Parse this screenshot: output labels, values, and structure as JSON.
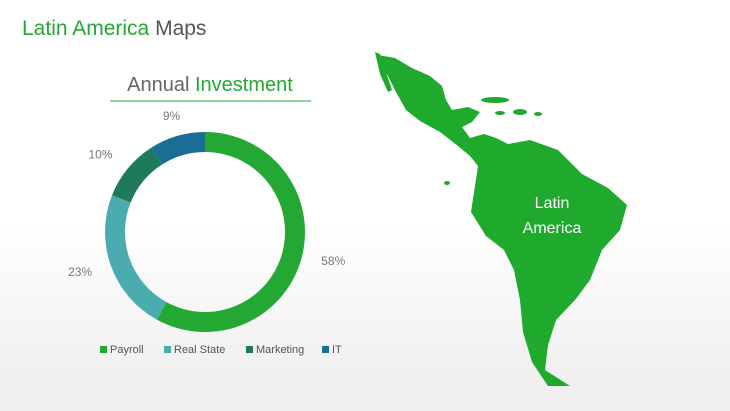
{
  "slide": {
    "title": [
      "Latin America",
      "Maps"
    ]
  },
  "chart_data": {
    "type": "donut",
    "title": [
      "Annual",
      "Investment"
    ],
    "categories": [
      "Payroll",
      "Real State",
      "Marketing",
      "IT"
    ],
    "values": [
      58,
      23,
      10,
      9
    ],
    "value_labels": [
      "58%",
      "23%",
      "10%",
      "9%"
    ],
    "colors": [
      "#22a833",
      "#4bacb0",
      "#1e7a5a",
      "#1a6e96"
    ],
    "legend": "bottom"
  },
  "map": {
    "label": [
      "Latin",
      "America"
    ]
  }
}
